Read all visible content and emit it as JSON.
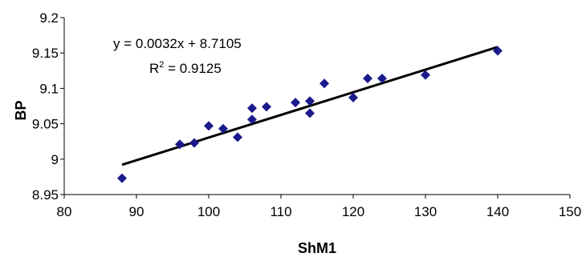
{
  "chart_data": {
    "type": "scatter",
    "xlabel": "ShM1",
    "ylabel": "BP",
    "xlim": [
      80,
      150
    ],
    "ylim": [
      8.95,
      9.2
    ],
    "x_ticks": [
      "80",
      "90",
      "100",
      "110",
      "120",
      "130",
      "140",
      "150"
    ],
    "y_ticks": [
      "8.95",
      "9",
      "9.05",
      "9.1",
      "9.15",
      "9.2"
    ],
    "grid": false,
    "legend": "none",
    "marker": "diamond",
    "marker_color": "#1a1a8c",
    "series": [
      {
        "points": [
          {
            "x": 88,
            "y": 8.973
          },
          {
            "x": 96,
            "y": 9.021
          },
          {
            "x": 98,
            "y": 9.023
          },
          {
            "x": 100,
            "y": 9.047
          },
          {
            "x": 102,
            "y": 9.043
          },
          {
            "x": 104,
            "y": 9.031
          },
          {
            "x": 106,
            "y": 9.056
          },
          {
            "x": 106,
            "y": 9.072
          },
          {
            "x": 108,
            "y": 9.074
          },
          {
            "x": 112,
            "y": 9.08
          },
          {
            "x": 114,
            "y": 9.065
          },
          {
            "x": 114,
            "y": 9.082
          },
          {
            "x": 116,
            "y": 9.107
          },
          {
            "x": 120,
            "y": 9.087
          },
          {
            "x": 122,
            "y": 9.114
          },
          {
            "x": 124,
            "y": 9.114
          },
          {
            "x": 130,
            "y": 9.119
          },
          {
            "x": 140,
            "y": 9.153
          }
        ]
      }
    ],
    "trendline": {
      "type": "linear",
      "slope": 0.0032,
      "intercept": 8.7105,
      "x_range": [
        88,
        140
      ],
      "color": "#000000",
      "equation_text": "y = 0.0032x + 8.7105",
      "r2_prefix": "R",
      "r2_exponent": "2",
      "r2_suffix": " = 0.9125"
    }
  }
}
